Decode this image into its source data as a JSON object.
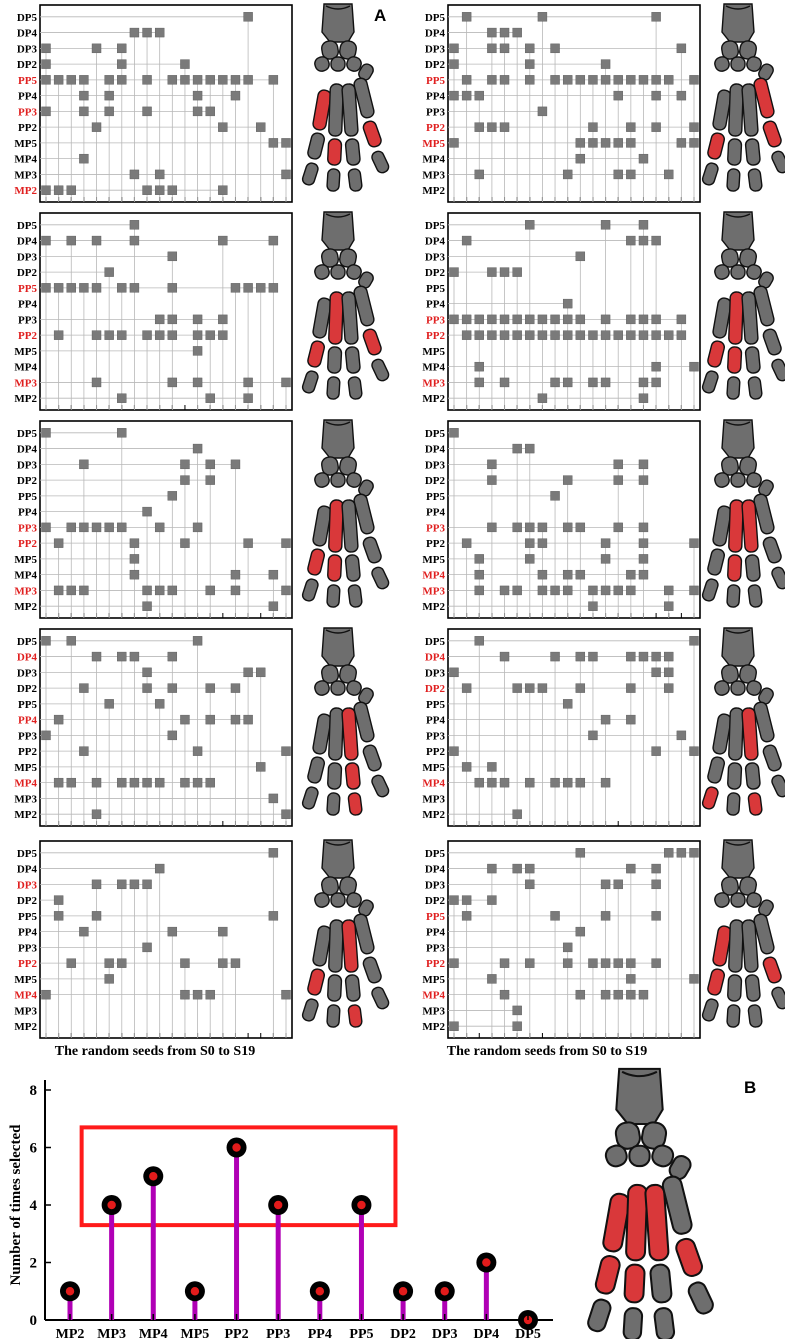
{
  "labels": {
    "panel_a": "A",
    "panel_b": "B",
    "seeds_xlabel": "The random seeds from S0 to S19",
    "b_ylabel": "Number of times selected"
  },
  "colors": {
    "marker": "#7a7a7a",
    "highlight_text": "#e02020",
    "bone_gray": "#6e6e6e",
    "bone_red": "#d9383a",
    "stem": "#b000b5",
    "box": "#ff1a1a"
  },
  "chart_data": [
    {
      "type": "scatter",
      "panel": "A-1",
      "rows": [
        "DP5",
        "DP4",
        "DP3",
        "DP2",
        "PP5",
        "PP4",
        "PP3",
        "PP2",
        "MP5",
        "MP4",
        "MP3",
        "MP2"
      ],
      "highlighted": [
        "PP5",
        "PP3",
        "MP2"
      ],
      "x_range": [
        0,
        19
      ],
      "points": {
        "DP5": [
          16
        ],
        "DP4": [
          7,
          8,
          9
        ],
        "DP3": [
          0,
          4,
          6
        ],
        "DP2": [
          0,
          6,
          11
        ],
        "PP5": [
          0,
          1,
          2,
          3,
          5,
          6,
          8,
          10,
          11,
          12,
          13,
          14,
          15,
          16,
          18
        ],
        "PP4": [
          3,
          5,
          12,
          15
        ],
        "PP3": [
          0,
          3,
          5,
          8,
          12,
          13
        ],
        "PP2": [
          4,
          14,
          17
        ],
        "MP5": [
          18,
          19
        ],
        "MP4": [
          3
        ],
        "MP3": [
          7,
          9,
          19
        ],
        "MP2": [
          0,
          1,
          2,
          8,
          9,
          10,
          14
        ]
      }
    },
    {
      "type": "scatter",
      "panel": "A-2",
      "rows": [
        "DP5",
        "DP4",
        "DP3",
        "DP2",
        "PP5",
        "PP4",
        "PP3",
        "PP2",
        "MP5",
        "MP4",
        "MP3",
        "MP2"
      ],
      "highlighted": [
        "PP5",
        "PP2",
        "MP5"
      ],
      "x_range": [
        0,
        19
      ],
      "points": {
        "DP5": [
          1,
          7,
          16
        ],
        "DP4": [
          3,
          4,
          5
        ],
        "DP3": [
          0,
          3,
          4,
          6,
          8,
          18
        ],
        "DP2": [
          0,
          6,
          12
        ],
        "PP5": [
          1,
          3,
          4,
          6,
          8,
          9,
          10,
          11,
          12,
          13,
          14,
          15,
          16,
          17,
          19
        ],
        "PP4": [
          0,
          1,
          2,
          13,
          16,
          18
        ],
        "PP3": [
          7
        ],
        "PP2": [
          2,
          3,
          4,
          11,
          14,
          16,
          19
        ],
        "MP5": [
          0,
          10,
          11,
          12,
          13,
          14,
          18,
          19
        ],
        "MP4": [
          10,
          15
        ],
        "MP3": [
          2,
          9,
          13,
          14,
          17
        ],
        "MP2": []
      }
    },
    {
      "type": "scatter",
      "panel": "A-3",
      "rows": [
        "DP5",
        "DP4",
        "DP3",
        "DP2",
        "PP5",
        "PP4",
        "PP3",
        "PP2",
        "MP5",
        "MP4",
        "MP3",
        "MP2"
      ],
      "highlighted": [
        "PP5",
        "PP2",
        "MP3"
      ],
      "x_range": [
        0,
        19
      ],
      "points": {
        "DP5": [
          7
        ],
        "DP4": [
          0,
          2,
          4,
          7,
          14,
          18
        ],
        "DP3": [
          10
        ],
        "DP2": [
          5
        ],
        "PP5": [
          0,
          1,
          2,
          3,
          4,
          6,
          7,
          10,
          15,
          16,
          17,
          18
        ],
        "PP4": [],
        "PP3": [
          9,
          10,
          12,
          14
        ],
        "PP2": [
          1,
          4,
          5,
          6,
          8,
          9,
          10,
          12,
          13,
          14
        ],
        "MP5": [
          12
        ],
        "MP4": [],
        "MP3": [
          4,
          10,
          12,
          16,
          19
        ],
        "MP2": [
          6,
          13,
          16
        ]
      }
    },
    {
      "type": "scatter",
      "panel": "A-4",
      "rows": [
        "DP5",
        "DP4",
        "DP3",
        "DP2",
        "PP5",
        "PP4",
        "PP3",
        "PP2",
        "MP5",
        "MP4",
        "MP3",
        "MP2"
      ],
      "highlighted": [
        "PP3",
        "PP2",
        "MP3"
      ],
      "x_range": [
        0,
        19
      ],
      "points": {
        "DP5": [
          6,
          12,
          15
        ],
        "DP4": [
          1,
          14,
          15,
          16
        ],
        "DP3": [
          10
        ],
        "DP2": [
          0,
          3,
          4,
          5
        ],
        "PP5": [],
        "PP4": [
          9
        ],
        "PP3": [
          0,
          1,
          2,
          3,
          4,
          5,
          6,
          7,
          8,
          9,
          10,
          12,
          14,
          15,
          16,
          18
        ],
        "PP2": [
          1,
          2,
          3,
          4,
          5,
          6,
          7,
          8,
          9,
          10,
          11,
          12,
          13,
          14,
          15,
          16,
          17,
          18
        ],
        "MP5": [],
        "MP4": [
          2,
          16,
          19
        ],
        "MP3": [
          2,
          4,
          8,
          9,
          11,
          12,
          15,
          16
        ],
        "MP2": [
          7,
          15
        ]
      }
    },
    {
      "type": "scatter",
      "panel": "A-5",
      "rows": [
        "DP5",
        "DP4",
        "DP3",
        "DP2",
        "PP5",
        "PP4",
        "PP3",
        "PP2",
        "MP5",
        "MP4",
        "MP3",
        "MP2"
      ],
      "highlighted": [
        "PP3",
        "PP2",
        "MP3"
      ],
      "x_range": [
        0,
        19
      ],
      "points": {
        "DP5": [
          0,
          6
        ],
        "DP4": [
          12
        ],
        "DP3": [
          3,
          11,
          13,
          15
        ],
        "DP2": [
          11,
          13
        ],
        "PP5": [
          10
        ],
        "PP4": [
          8
        ],
        "PP3": [
          0,
          2,
          3,
          4,
          5,
          6,
          9,
          12
        ],
        "PP2": [
          1,
          7,
          11,
          16,
          19
        ],
        "MP5": [
          7
        ],
        "MP4": [
          7,
          15,
          18
        ],
        "MP3": [
          1,
          2,
          3,
          8,
          9,
          10,
          13,
          15,
          19
        ],
        "MP2": [
          8,
          18
        ]
      }
    },
    {
      "type": "scatter",
      "panel": "A-6",
      "rows": [
        "DP5",
        "DP4",
        "DP3",
        "DP2",
        "PP5",
        "PP4",
        "PP3",
        "PP2",
        "MP5",
        "MP4",
        "MP3",
        "MP2"
      ],
      "highlighted": [
        "PP3",
        "MP4",
        "MP3"
      ],
      "x_range": [
        0,
        19
      ],
      "points": {
        "DP5": [
          0
        ],
        "DP4": [
          5,
          6
        ],
        "DP3": [
          3,
          13,
          15
        ],
        "DP2": [
          3,
          9,
          13,
          15
        ],
        "PP5": [
          8
        ],
        "PP4": [],
        "PP3": [
          3,
          5,
          6,
          7,
          9,
          10,
          13,
          15
        ],
        "PP2": [
          1,
          6,
          7,
          12,
          15,
          19
        ],
        "MP5": [
          2,
          6,
          12,
          15
        ],
        "MP4": [
          2,
          7,
          9,
          10,
          14,
          15
        ],
        "MP3": [
          2,
          4,
          5,
          7,
          8,
          9,
          11,
          12,
          13,
          14,
          17,
          19
        ],
        "MP2": [
          11,
          17
        ]
      }
    },
    {
      "type": "scatter",
      "panel": "A-7",
      "rows": [
        "DP5",
        "DP4",
        "DP3",
        "DP2",
        "PP5",
        "PP4",
        "PP3",
        "PP2",
        "MP5",
        "MP4",
        "MP3",
        "MP2"
      ],
      "highlighted": [
        "DP4",
        "PP4",
        "MP4"
      ],
      "x_range": [
        0,
        19
      ],
      "points": {
        "DP5": [
          0,
          2,
          12
        ],
        "DP4": [
          4,
          6,
          7,
          10
        ],
        "DP3": [
          8,
          16,
          17
        ],
        "DP2": [
          3,
          8,
          10,
          13,
          15
        ],
        "PP5": [
          5,
          9
        ],
        "PP4": [
          1,
          11,
          13,
          15,
          16
        ],
        "PP3": [
          0,
          10
        ],
        "PP2": [
          3,
          12,
          19
        ],
        "MP5": [
          17
        ],
        "MP4": [
          1,
          2,
          4,
          6,
          7,
          8,
          9,
          11,
          12,
          13
        ],
        "MP3": [
          18
        ],
        "MP2": [
          4,
          19
        ]
      }
    },
    {
      "type": "scatter",
      "panel": "A-8",
      "rows": [
        "DP5",
        "DP4",
        "DP3",
        "DP2",
        "PP5",
        "PP4",
        "PP3",
        "PP2",
        "MP5",
        "MP4",
        "MP3",
        "MP2"
      ],
      "highlighted": [
        "DP4",
        "DP2",
        "MP4"
      ],
      "x_range": [
        0,
        19
      ],
      "points": {
        "DP5": [
          2,
          19
        ],
        "DP4": [
          4,
          8,
          10,
          11,
          14,
          15,
          16,
          17
        ],
        "DP3": [
          0,
          16,
          17
        ],
        "DP2": [
          1,
          5,
          6,
          7,
          10,
          14,
          17
        ],
        "PP5": [
          9
        ],
        "PP4": [
          12,
          14
        ],
        "PP3": [
          11,
          18
        ],
        "PP2": [
          0,
          16,
          19
        ],
        "MP5": [
          1,
          3
        ],
        "MP4": [
          2,
          3,
          4,
          6,
          8,
          9,
          10,
          12
        ],
        "MP3": [],
        "MP2": [
          5
        ]
      }
    },
    {
      "type": "scatter",
      "panel": "A-9",
      "rows": [
        "DP5",
        "DP4",
        "DP3",
        "DP2",
        "PP5",
        "PP4",
        "PP3",
        "PP2",
        "MP5",
        "MP4",
        "MP3",
        "MP2"
      ],
      "highlighted": [
        "DP3",
        "PP2",
        "MP4"
      ],
      "x_range": [
        0,
        19
      ],
      "points": {
        "DP5": [
          18
        ],
        "DP4": [
          9
        ],
        "DP3": [
          4,
          6,
          7,
          8
        ],
        "DP2": [
          1
        ],
        "PP5": [
          1,
          4,
          18
        ],
        "PP4": [
          3,
          10,
          14
        ],
        "PP3": [
          8
        ],
        "PP2": [
          2,
          5,
          6,
          11,
          14,
          15
        ],
        "MP5": [
          5
        ],
        "MP4": [
          0,
          11,
          12,
          13,
          19
        ],
        "MP3": [],
        "MP2": []
      }
    },
    {
      "type": "scatter",
      "panel": "A-10",
      "rows": [
        "DP5",
        "DP4",
        "DP3",
        "DP2",
        "PP5",
        "PP4",
        "PP3",
        "PP2",
        "MP5",
        "MP4",
        "MP3",
        "MP2"
      ],
      "highlighted": [
        "PP5",
        "PP2",
        "MP4"
      ],
      "x_range": [
        0,
        19
      ],
      "points": {
        "DP5": [
          10,
          17,
          18,
          19
        ],
        "DP4": [
          3,
          5,
          6,
          14,
          16
        ],
        "DP3": [
          6,
          12,
          13,
          16
        ],
        "DP2": [
          0,
          1,
          3
        ],
        "PP5": [
          1,
          8,
          12,
          16
        ],
        "PP4": [
          10
        ],
        "PP3": [
          9
        ],
        "PP2": [
          0,
          4,
          6,
          9,
          11,
          12,
          13,
          14,
          16
        ],
        "MP5": [
          3,
          14,
          19
        ],
        "MP4": [
          4,
          10,
          12,
          13,
          14,
          15
        ],
        "MP3": [
          5
        ],
        "MP2": [
          0,
          5
        ]
      }
    },
    {
      "type": "bar",
      "panel": "B",
      "style": "lollipop",
      "categories": [
        "MP2",
        "MP3",
        "MP4",
        "MP5",
        "PP2",
        "PP3",
        "PP4",
        "PP5",
        "DP2",
        "DP3",
        "DP4",
        "DP5"
      ],
      "values": [
        1,
        4,
        5,
        1,
        6,
        4,
        1,
        4,
        1,
        1,
        2,
        0
      ],
      "ylabel": "Number of times selected",
      "ylim": [
        0,
        8
      ],
      "yticks": [
        0,
        2,
        4,
        6,
        8
      ],
      "highlight_box_categories": [
        "MP3",
        "PP5"
      ]
    }
  ]
}
